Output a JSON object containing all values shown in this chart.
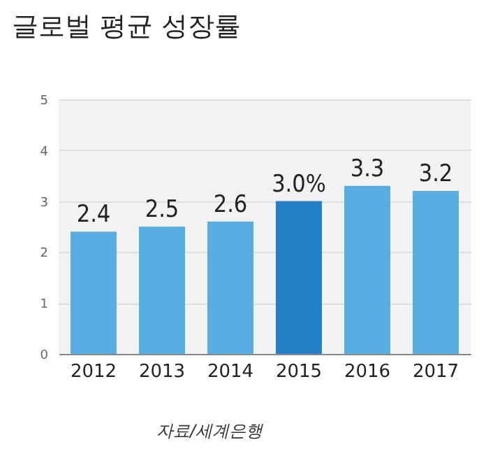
{
  "chart_data": {
    "type": "bar",
    "title": "글로벌 평균 성장률",
    "categories": [
      "2012",
      "2013",
      "2014",
      "2015",
      "2016",
      "2017"
    ],
    "values": [
      2.4,
      2.5,
      2.6,
      3.0,
      3.3,
      3.2
    ],
    "colors": [
      "#58aee2",
      "#58aee2",
      "#58aee2",
      "#2380c6",
      "#58aee2",
      "#58aee2"
    ],
    "value_labels": [
      "2.4",
      "2.5",
      "2.6",
      "3.0%",
      "3.3",
      "3.2"
    ],
    "ylim": [
      0,
      5
    ],
    "yticks": [
      0,
      1,
      2,
      3,
      4,
      5
    ],
    "grid": "y",
    "annotations": [
      "자료/세계은행"
    ]
  }
}
